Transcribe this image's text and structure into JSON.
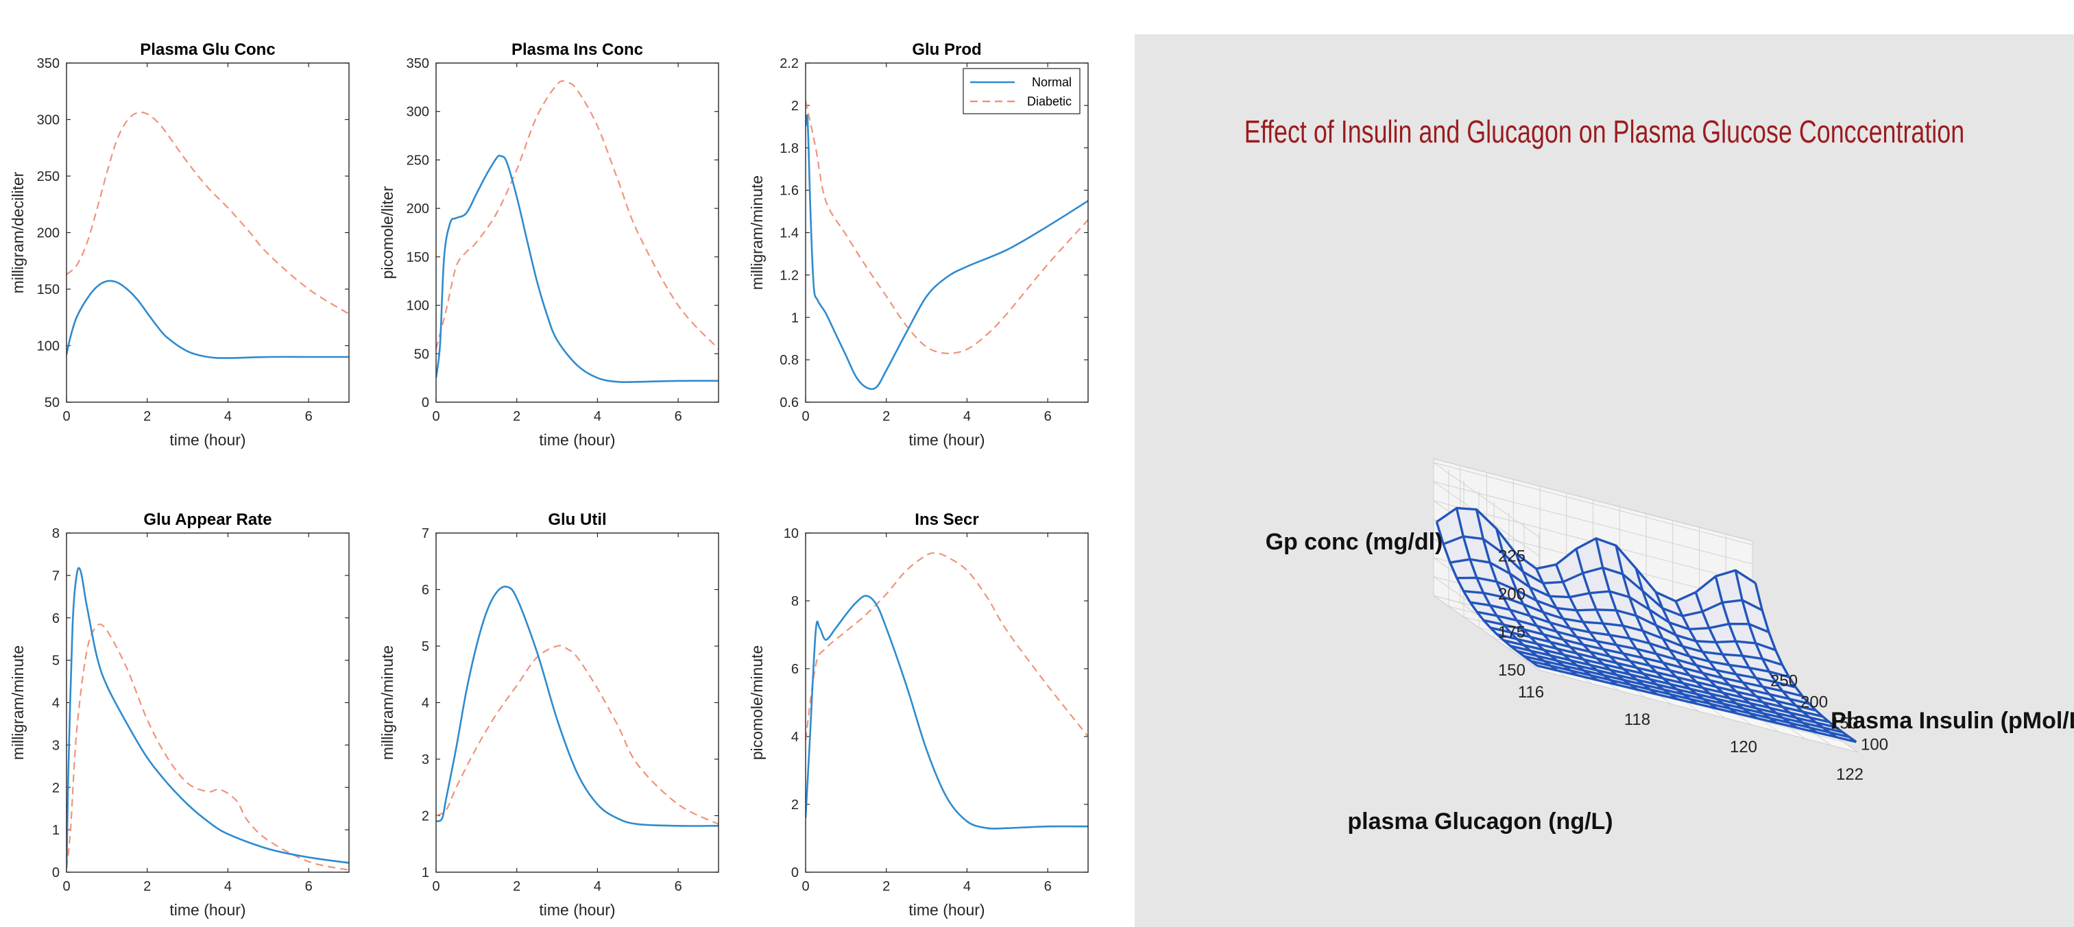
{
  "chart_data": [
    {
      "type": "line",
      "title": "Plasma Glu Conc",
      "xlabel": "time (hour)",
      "ylabel": "milligram/deciliter",
      "xlim": [
        0,
        7
      ],
      "ylim": [
        50,
        350
      ],
      "xticks": [
        0,
        2,
        4,
        6
      ],
      "yticks": [
        50,
        100,
        150,
        200,
        250,
        300,
        350
      ],
      "series": [
        {
          "name": "Normal",
          "style": "solid",
          "color": "#2e8bcf",
          "x": [
            0,
            0.1,
            0.25,
            0.5,
            0.75,
            1,
            1.25,
            1.5,
            1.75,
            2,
            2.25,
            2.5,
            3,
            3.5,
            4,
            5,
            6,
            7
          ],
          "y": [
            92,
            108,
            125,
            141,
            152,
            157,
            156,
            150,
            141,
            129,
            117,
            107,
            95,
            90,
            89,
            90,
            90,
            90
          ]
        },
        {
          "name": "Diabetic",
          "style": "dashed",
          "color": "#f0937a",
          "x": [
            0,
            0.25,
            0.5,
            0.75,
            1,
            1.25,
            1.5,
            1.75,
            2,
            2.25,
            2.5,
            3,
            3.5,
            4,
            4.5,
            5,
            6,
            7
          ],
          "y": [
            163,
            171,
            190,
            220,
            253,
            282,
            299,
            306,
            305,
            298,
            287,
            262,
            240,
            222,
            202,
            181,
            150,
            128
          ]
        }
      ]
    },
    {
      "type": "line",
      "title": "Plasma Ins Conc",
      "xlabel": "time (hour)",
      "ylabel": "picomole/liter",
      "xlim": [
        0,
        7
      ],
      "ylim": [
        0,
        350
      ],
      "xticks": [
        0,
        2,
        4,
        6
      ],
      "yticks": [
        0,
        50,
        100,
        150,
        200,
        250,
        300,
        350
      ],
      "series": [
        {
          "name": "Normal",
          "style": "solid",
          "color": "#2e8bcf",
          "x": [
            0,
            0.1,
            0.2,
            0.35,
            0.5,
            0.75,
            1,
            1.25,
            1.5,
            1.6,
            1.75,
            2,
            2.25,
            2.5,
            2.75,
            3,
            3.5,
            4,
            4.5,
            5,
            6,
            7
          ],
          "y": [
            25,
            60,
            150,
            185,
            190,
            195,
            215,
            235,
            252,
            254,
            248,
            212,
            168,
            125,
            90,
            64,
            38,
            25,
            21,
            21,
            22,
            22
          ]
        },
        {
          "name": "Diabetic",
          "style": "dashed",
          "color": "#f0937a",
          "x": [
            0,
            0.25,
            0.5,
            0.75,
            1,
            1.5,
            2,
            2.5,
            3,
            3.25,
            3.5,
            4,
            4.5,
            5,
            6,
            7
          ],
          "y": [
            55,
            95,
            140,
            155,
            165,
            195,
            240,
            295,
            328,
            330,
            322,
            285,
            230,
            175,
            100,
            55
          ]
        }
      ]
    },
    {
      "type": "line",
      "title": "Glu Prod",
      "xlabel": "time (hour)",
      "ylabel": "milligram/minute",
      "xlim": [
        0,
        7
      ],
      "ylim": [
        0.6,
        2.2
      ],
      "xticks": [
        0,
        2,
        4,
        6
      ],
      "yticks": [
        0.6,
        0.8,
        1,
        1.2,
        1.4,
        1.6,
        1.8,
        2,
        2.2
      ],
      "legend": {
        "position": "top-right",
        "entries": [
          "Normal",
          "Diabetic"
        ]
      },
      "series": [
        {
          "name": "Normal",
          "style": "solid",
          "color": "#2e8bcf",
          "x": [
            0,
            0.05,
            0.12,
            0.2,
            0.3,
            0.5,
            0.75,
            1,
            1.25,
            1.5,
            1.75,
            2,
            2.5,
            3,
            3.5,
            4,
            5,
            6,
            7
          ],
          "y": [
            1.9,
            1.93,
            1.5,
            1.15,
            1.08,
            1.02,
            0.92,
            0.82,
            0.72,
            0.67,
            0.67,
            0.75,
            0.93,
            1.1,
            1.19,
            1.24,
            1.32,
            1.43,
            1.55
          ]
        },
        {
          "name": "Diabetic",
          "style": "dashed",
          "color": "#f0937a",
          "x": [
            0,
            0.25,
            0.5,
            1,
            1.5,
            2,
            2.5,
            3,
            3.5,
            4,
            4.5,
            5,
            6,
            7
          ],
          "y": [
            2.02,
            1.8,
            1.55,
            1.39,
            1.24,
            1.1,
            0.96,
            0.86,
            0.83,
            0.85,
            0.92,
            1.02,
            1.25,
            1.46
          ]
        }
      ]
    },
    {
      "type": "line",
      "title": "Glu Appear Rate",
      "xlabel": "time (hour)",
      "ylabel": "milligram/minute",
      "xlim": [
        0,
        7
      ],
      "ylim": [
        0,
        8
      ],
      "xticks": [
        0,
        2,
        4,
        6
      ],
      "yticks": [
        0,
        1,
        2,
        3,
        4,
        5,
        6,
        7,
        8
      ],
      "series": [
        {
          "name": "Normal",
          "style": "solid",
          "color": "#2e8bcf",
          "x": [
            0,
            0.05,
            0.15,
            0.25,
            0.35,
            0.5,
            0.75,
            1,
            1.5,
            2,
            2.5,
            3,
            3.5,
            4,
            5,
            6,
            7
          ],
          "y": [
            0.1,
            2.5,
            5.8,
            7.0,
            7.1,
            6.3,
            5.1,
            4.4,
            3.5,
            2.7,
            2.1,
            1.6,
            1.2,
            0.9,
            0.55,
            0.35,
            0.22
          ]
        },
        {
          "name": "Diabetic",
          "style": "dashed",
          "color": "#f0937a",
          "x": [
            0,
            0.1,
            0.25,
            0.5,
            0.75,
            1,
            1.5,
            2,
            2.5,
            3,
            3.5,
            3.8,
            4.2,
            4.5,
            5,
            6,
            7
          ],
          "y": [
            0.1,
            1.0,
            3.3,
            5.2,
            5.8,
            5.7,
            4.8,
            3.6,
            2.7,
            2.1,
            1.9,
            1.95,
            1.7,
            1.2,
            0.75,
            0.25,
            0.05
          ]
        }
      ]
    },
    {
      "type": "line",
      "title": "Glu Util",
      "xlabel": "time (hour)",
      "ylabel": "milligram/minute",
      "xlim": [
        0,
        7
      ],
      "ylim": [
        1,
        7
      ],
      "xticks": [
        0,
        2,
        4,
        6
      ],
      "yticks": [
        1,
        2,
        3,
        4,
        5,
        6,
        7
      ],
      "series": [
        {
          "name": "Normal",
          "style": "solid",
          "color": "#2e8bcf",
          "x": [
            0,
            0.15,
            0.25,
            0.5,
            0.75,
            1,
            1.25,
            1.5,
            1.75,
            2,
            2.5,
            3,
            3.5,
            4,
            4.5,
            5,
            6,
            7
          ],
          "y": [
            1.9,
            1.95,
            2.3,
            3.2,
            4.2,
            5.0,
            5.6,
            5.95,
            6.05,
            5.85,
            4.9,
            3.7,
            2.75,
            2.2,
            1.95,
            1.85,
            1.82,
            1.82
          ]
        },
        {
          "name": "Diabetic",
          "style": "dashed",
          "color": "#f0937a",
          "x": [
            0,
            0.25,
            0.5,
            1,
            1.5,
            2,
            2.5,
            3,
            3.25,
            3.5,
            4,
            4.5,
            5,
            6,
            7
          ],
          "y": [
            2.0,
            2.1,
            2.5,
            3.2,
            3.8,
            4.3,
            4.8,
            5.0,
            4.95,
            4.8,
            4.25,
            3.6,
            2.9,
            2.2,
            1.85
          ]
        }
      ]
    },
    {
      "type": "line",
      "title": "Ins Secr",
      "xlabel": "time (hour)",
      "ylabel": "picomole/minute",
      "xlim": [
        0,
        7
      ],
      "ylim": [
        0,
        10
      ],
      "xticks": [
        0,
        2,
        4,
        6
      ],
      "yticks": [
        0,
        2,
        4,
        6,
        8,
        10
      ],
      "series": [
        {
          "name": "Normal",
          "style": "solid",
          "color": "#2e8bcf",
          "x": [
            0,
            0.1,
            0.25,
            0.35,
            0.5,
            0.75,
            1,
            1.25,
            1.5,
            1.75,
            2,
            2.5,
            3,
            3.5,
            4,
            4.5,
            5,
            6,
            7
          ],
          "y": [
            1.6,
            3.8,
            7.1,
            7.2,
            6.85,
            7.2,
            7.6,
            7.95,
            8.15,
            7.9,
            7.2,
            5.5,
            3.6,
            2.2,
            1.5,
            1.3,
            1.3,
            1.35,
            1.35
          ]
        },
        {
          "name": "Diabetic",
          "style": "dashed",
          "color": "#f0937a",
          "x": [
            0,
            0.25,
            0.5,
            1,
            1.5,
            2,
            2.5,
            3,
            3.25,
            3.5,
            4,
            4.5,
            5,
            6,
            7
          ],
          "y": [
            3.9,
            6.1,
            6.6,
            7.1,
            7.6,
            8.2,
            8.9,
            9.35,
            9.4,
            9.3,
            8.9,
            8.1,
            7.1,
            5.5,
            4.0
          ]
        }
      ]
    },
    {
      "type": "surface",
      "title": "Effect of Insulin and Glucagon on Plasma Glucose Conccentration",
      "zlabel": "Gp conc (mg/dl)",
      "xlabel": "plasma Glucagon (ng/L)",
      "ylabel": "Plasma Insulin (pMol/L)",
      "xlim": [
        116,
        122
      ],
      "ylim": [
        75,
        250
      ],
      "zlim": [
        150,
        240
      ],
      "xticks": [
        116,
        118,
        120,
        122
      ],
      "yticks": [
        100,
        150,
        200,
        250
      ],
      "zticks": [
        150,
        175,
        200,
        225
      ],
      "color": "#2255bb"
    }
  ]
}
